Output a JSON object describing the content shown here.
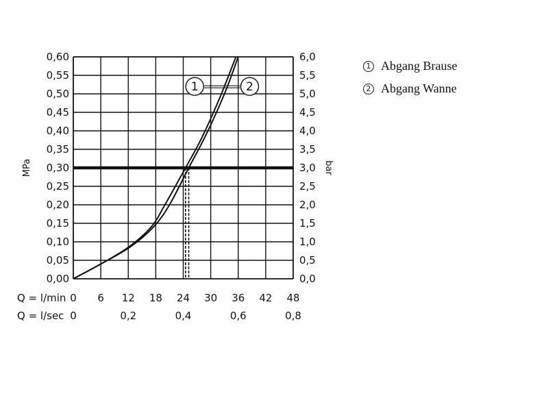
{
  "legend": [
    {
      "num": "1",
      "label": "Abgang Brause"
    },
    {
      "num": "2",
      "label": "Abgang Wanne"
    }
  ],
  "chart_data": {
    "type": "line",
    "xlabel_rows": [
      {
        "prefix": "Q = l/min",
        "ticks": [
          "0",
          "6",
          "12",
          "18",
          "24",
          "30",
          "36",
          "42",
          "48"
        ],
        "values": [
          0,
          6,
          12,
          18,
          24,
          30,
          36,
          42,
          48
        ]
      },
      {
        "prefix": "Q = l/sec",
        "ticks": [
          "0",
          "0,2",
          "0,4",
          "0,6",
          "0,8"
        ],
        "values": [
          0,
          12,
          24,
          36,
          48
        ]
      }
    ],
    "ylabel_left": "MPa",
    "ylabel_right": "bar",
    "xlim": [
      0,
      48
    ],
    "ylim": [
      0,
      0.6
    ],
    "yticks_left": [
      "0,00",
      "0,05",
      "0,10",
      "0,15",
      "0,20",
      "0,25",
      "0,30",
      "0,35",
      "0,40",
      "0,45",
      "0,50",
      "0,55",
      "0,60"
    ],
    "yticks_right": [
      "0,0",
      "0,5",
      "1,0",
      "1,5",
      "2,0",
      "2,5",
      "3,0",
      "3,5",
      "4,0",
      "4,5",
      "5,0",
      "5,5",
      "6,0"
    ],
    "ytick_values": [
      0,
      0.05,
      0.1,
      0.15,
      0.2,
      0.25,
      0.3,
      0.35,
      0.4,
      0.45,
      0.5,
      0.55,
      0.6
    ],
    "xgrid": [
      0,
      6,
      12,
      18,
      24,
      30,
      36,
      42,
      48
    ],
    "reference_line": {
      "y": 0.3
    },
    "series": [
      {
        "label": "1",
        "x": [
          0,
          6,
          12,
          17,
          20,
          24.5,
          28,
          32,
          35.5
        ],
        "y": [
          0,
          0.04,
          0.085,
          0.14,
          0.2,
          0.3,
          0.38,
          0.49,
          0.6
        ],
        "marker_x": 24.5
      },
      {
        "label": "2",
        "x": [
          0,
          6,
          12.3,
          17.5,
          21,
          25.2,
          29,
          33,
          36
        ],
        "y": [
          0,
          0.04,
          0.085,
          0.14,
          0.2,
          0.3,
          0.39,
          0.5,
          0.6
        ],
        "marker_x": 25.2
      }
    ],
    "series_callouts": [
      {
        "label": "1",
        "x": 26.5,
        "y": 0.52
      },
      {
        "label": "2",
        "x": 38.5,
        "y": 0.52
      }
    ],
    "grid": true,
    "colors": {
      "line": "#111111",
      "grid": "#111111"
    }
  }
}
